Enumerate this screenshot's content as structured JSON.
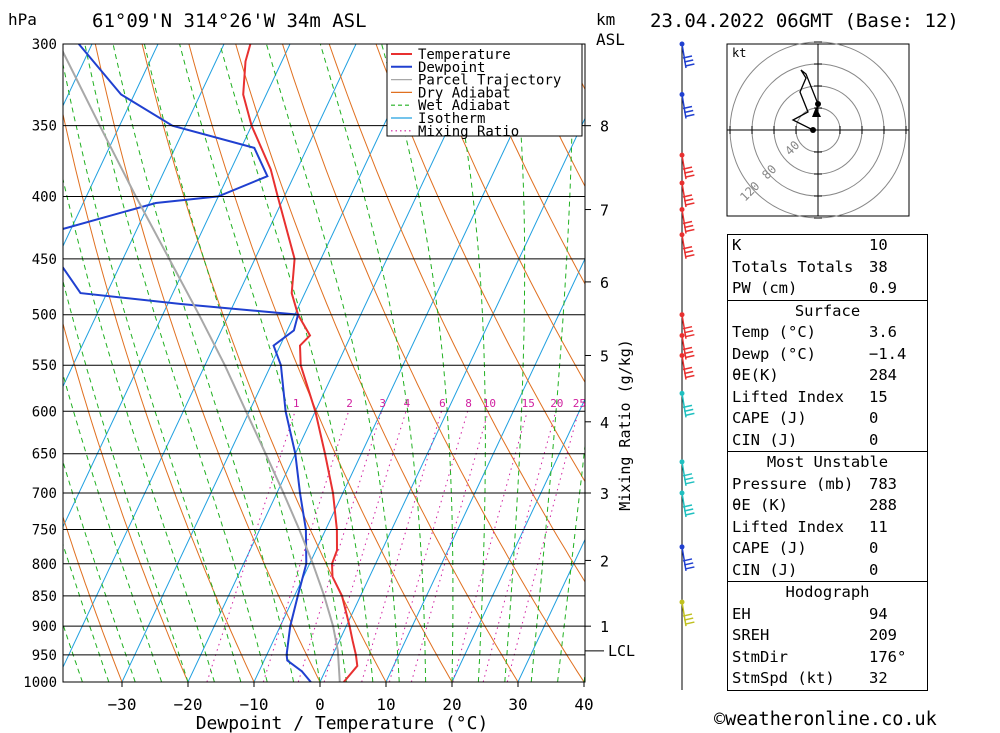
{
  "header": {
    "pressure_unit": "hPa",
    "location": "61°09'N 314°26'W 34m ASL",
    "km_label": "km",
    "asl_label": "ASL",
    "datetime": "23.04.2022 06GMT (Base: 12)"
  },
  "chart_data": {
    "type": "line",
    "title": "61°09'N 314°26'W 34m ASL",
    "xlabel": "Dewpoint / Temperature (°C)",
    "ylabel": "hPa",
    "secondary_ylabel": "Mixing Ratio (g/kg)",
    "x_ticks": [
      -30,
      -20,
      -10,
      0,
      10,
      20,
      30,
      40
    ],
    "x_tick_labels": [
      "−30",
      "−20",
      "−10",
      "0",
      "10",
      "20",
      "30",
      "40"
    ],
    "ylim": [
      1000,
      300
    ],
    "pressure_levels": [
      300,
      350,
      400,
      450,
      500,
      550,
      600,
      650,
      700,
      750,
      800,
      850,
      900,
      950,
      1000
    ],
    "km_ticks": [
      {
        "km": 1,
        "p": 900
      },
      {
        "km": 2,
        "p": 795
      },
      {
        "km": 3,
        "p": 700
      },
      {
        "km": 4,
        "p": 612
      },
      {
        "km": 5,
        "p": 540
      },
      {
        "km": 6,
        "p": 470
      },
      {
        "km": 7,
        "p": 410
      },
      {
        "km": 8,
        "p": 350
      }
    ],
    "lcl": {
      "label": "LCL",
      "p": 943
    },
    "mixing_ratio_labels": [
      "1",
      "2",
      "3",
      "4",
      "6",
      "8",
      "10",
      "15",
      "20",
      "25"
    ],
    "legend": [
      "Temperature",
      "Dewpoint",
      "Parcel Trajectory",
      "Dry Adiabat",
      "Wet Adiabat",
      "Isotherm",
      "Mixing Ratio"
    ],
    "legend_position": "top-right",
    "series": [
      {
        "name": "Temperature",
        "color": "#e83030",
        "points": [
          [
            1000,
            3.6
          ],
          [
            970,
            4.5
          ],
          [
            950,
            3.5
          ],
          [
            925,
            2.0
          ],
          [
            900,
            0.5
          ],
          [
            850,
            -2.8
          ],
          [
            820,
            -5.6
          ],
          [
            800,
            -6.6
          ],
          [
            780,
            -6.8
          ],
          [
            750,
            -8.3
          ],
          [
            700,
            -11.5
          ],
          [
            650,
            -15.5
          ],
          [
            600,
            -20.0
          ],
          [
            550,
            -25.5
          ],
          [
            530,
            -27.0
          ],
          [
            520,
            -26.2
          ],
          [
            500,
            -29.5
          ],
          [
            480,
            -32.0
          ],
          [
            450,
            -34.0
          ],
          [
            400,
            -41.0
          ],
          [
            380,
            -44.0
          ],
          [
            350,
            -50.0
          ],
          [
            330,
            -53.5
          ],
          [
            310,
            -55.5
          ],
          [
            300,
            -56.0
          ]
        ]
      },
      {
        "name": "Dewpoint",
        "color": "#2040d0",
        "points": [
          [
            1000,
            -1.4
          ],
          [
            980,
            -3.5
          ],
          [
            960,
            -6.5
          ],
          [
            950,
            -7.0
          ],
          [
            900,
            -8.5
          ],
          [
            850,
            -9.5
          ],
          [
            800,
            -10.5
          ],
          [
            750,
            -13.0
          ],
          [
            700,
            -16.5
          ],
          [
            650,
            -20.0
          ],
          [
            600,
            -24.5
          ],
          [
            550,
            -28.5
          ],
          [
            530,
            -31.0
          ],
          [
            515,
            -29.0
          ],
          [
            500,
            -29.5
          ],
          [
            490,
            -48.0
          ],
          [
            480,
            -64.0
          ],
          [
            450,
            -70.0
          ],
          [
            430,
            -74.0
          ],
          [
            405,
            -59.0
          ],
          [
            400,
            -50.0
          ],
          [
            385,
            -44.0
          ],
          [
            365,
            -48.0
          ],
          [
            350,
            -62.0
          ],
          [
            330,
            -72.0
          ],
          [
            300,
            -82.0
          ]
        ]
      },
      {
        "name": "Parcel Trajectory",
        "color": "#a8a8a8",
        "points": [
          [
            1000,
            3.0
          ],
          [
            943,
            0.5
          ],
          [
            900,
            -2.0
          ],
          [
            850,
            -5.5
          ],
          [
            800,
            -9.5
          ],
          [
            750,
            -14.0
          ],
          [
            700,
            -19.0
          ],
          [
            650,
            -24.5
          ],
          [
            600,
            -30.5
          ],
          [
            550,
            -37.0
          ],
          [
            500,
            -44.5
          ],
          [
            450,
            -53.0
          ],
          [
            400,
            -62.5
          ],
          [
            350,
            -73.0
          ],
          [
            300,
            -85.0
          ]
        ]
      }
    ]
  },
  "wind_barbs": [
    {
      "p": 300,
      "color": "#2040d0"
    },
    {
      "p": 330,
      "color": "#2040d0"
    },
    {
      "p": 370,
      "color": "#e83030"
    },
    {
      "p": 390,
      "color": "#e83030"
    },
    {
      "p": 410,
      "color": "#e83030"
    },
    {
      "p": 430,
      "color": "#e83030"
    },
    {
      "p": 500,
      "color": "#e83030"
    },
    {
      "p": 520,
      "color": "#e83030"
    },
    {
      "p": 540,
      "color": "#e83030"
    },
    {
      "p": 580,
      "color": "#20c0c0"
    },
    {
      "p": 660,
      "color": "#20c0c0"
    },
    {
      "p": 700,
      "color": "#20c0c0"
    },
    {
      "p": 775,
      "color": "#2040d0"
    },
    {
      "p": 860,
      "color": "#c0c020"
    }
  ],
  "hodograph": {
    "unit": "kt",
    "ring_labels": [
      "40",
      "80",
      "120"
    ]
  },
  "indices": [
    {
      "label": "K",
      "value": "10"
    },
    {
      "label": "Totals Totals",
      "value": "38"
    },
    {
      "label": "PW (cm)",
      "value": "0.9"
    }
  ],
  "surface": {
    "title": "Surface",
    "rows": [
      {
        "label": "Temp (°C)",
        "value": "3.6"
      },
      {
        "label": "Dewp (°C)",
        "value": "−1.4"
      },
      {
        "label": "θE(K)",
        "value": "284"
      },
      {
        "label": "Lifted Index",
        "value": "15"
      },
      {
        "label": "CAPE (J)",
        "value": "0"
      },
      {
        "label": "CIN (J)",
        "value": "0"
      }
    ]
  },
  "most_unstable": {
    "title": "Most Unstable",
    "rows": [
      {
        "label": "Pressure (mb)",
        "value": "783"
      },
      {
        "label": "θE (K)",
        "value": "288"
      },
      {
        "label": "Lifted Index",
        "value": "11"
      },
      {
        "label": "CAPE (J)",
        "value": "0"
      },
      {
        "label": "CIN (J)",
        "value": "0"
      }
    ]
  },
  "hodograph_table": {
    "title": "Hodograph",
    "rows": [
      {
        "label": "EH",
        "value": "94"
      },
      {
        "label": "SREH",
        "value": "209"
      },
      {
        "label": "StmDir",
        "value": "176°"
      },
      {
        "label": "StmSpd (kt)",
        "value": "32"
      }
    ]
  },
  "copyright": "©weatheronline.co.uk",
  "colors": {
    "temperature": "#e83030",
    "dewpoint": "#2040d0",
    "parcel": "#a8a8a8",
    "dry_adiabat": "#e07020",
    "wet_adiabat": "#20b020",
    "isotherm": "#20a0e0",
    "mixing_ratio": "#d020a0"
  }
}
